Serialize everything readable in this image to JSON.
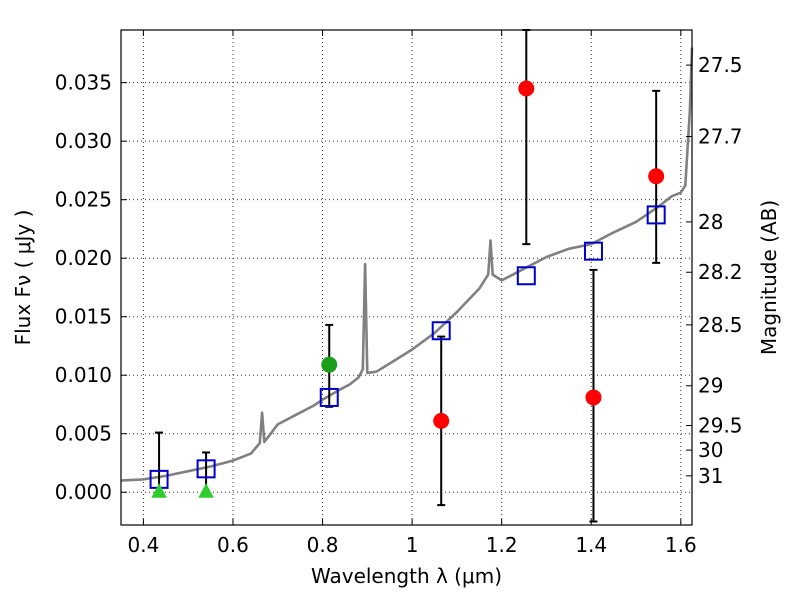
{
  "chart_data": {
    "type": "scatter",
    "title": "",
    "xlabel": "Wavelength  λ (μm)",
    "ylabel": "Flux  Fν  ( μJy )",
    "y2label": "Magnitude (AB)",
    "xlim": [
      0.35,
      1.625
    ],
    "ylim": [
      -0.0028,
      0.0395
    ],
    "grid": true,
    "x_ticks": [
      0.4,
      0.6,
      0.8,
      1.0,
      1.2,
      1.4,
      1.6
    ],
    "x_tick_labels": [
      "0.4",
      "0.6",
      "0.8",
      "1",
      "1.2",
      "1.4",
      "1.6"
    ],
    "y_ticks": [
      0.0,
      0.005,
      0.01,
      0.015,
      0.02,
      0.025,
      0.03,
      0.035
    ],
    "y_tick_labels": [
      "0.000",
      "0.005",
      "0.010",
      "0.015",
      "0.020",
      "0.025",
      "0.030",
      "0.035"
    ],
    "y2_ticks": [
      {
        "label": "27.5",
        "flux": 0.0365
      },
      {
        "label": "27.7",
        "flux": 0.0304
      },
      {
        "label": "28",
        "flux": 0.0231
      },
      {
        "label": "28.2",
        "flux": 0.0188
      },
      {
        "label": "28.5",
        "flux": 0.0143
      },
      {
        "label": "29",
        "flux": 0.0091
      },
      {
        "label": "29.5",
        "flux": 0.0057
      },
      {
        "label": "30",
        "flux": 0.0036
      },
      {
        "label": "31",
        "flux": 0.0014
      }
    ],
    "series": [
      {
        "kind": "line",
        "color": "#808080",
        "x": [
          0.35,
          0.4,
          0.45,
          0.5,
          0.55,
          0.6,
          0.64,
          0.66,
          0.665,
          0.67,
          0.7,
          0.73,
          0.75,
          0.78,
          0.8,
          0.84,
          0.86,
          0.88,
          0.89,
          0.895,
          0.9,
          0.92,
          0.95,
          1.0,
          1.05,
          1.1,
          1.15,
          1.17,
          1.175,
          1.18,
          1.2,
          1.25,
          1.3,
          1.35,
          1.4,
          1.45,
          1.5,
          1.55,
          1.58,
          1.6,
          1.61,
          1.62,
          1.625
        ],
        "y": [
          0.001,
          0.0011,
          0.0014,
          0.0018,
          0.0022,
          0.0027,
          0.0033,
          0.0042,
          0.0068,
          0.0043,
          0.0058,
          0.0064,
          0.0068,
          0.0074,
          0.0079,
          0.0088,
          0.0092,
          0.0098,
          0.0105,
          0.0195,
          0.0102,
          0.0103,
          0.011,
          0.0122,
          0.0136,
          0.0154,
          0.0174,
          0.0186,
          0.0215,
          0.0186,
          0.0181,
          0.0191,
          0.0201,
          0.0208,
          0.0212,
          0.0222,
          0.0231,
          0.0244,
          0.0253,
          0.0256,
          0.0262,
          0.0325,
          0.038
        ]
      },
      {
        "kind": "squares",
        "color": "#0000cc",
        "x": [
          0.435,
          0.54,
          0.815,
          1.065,
          1.255,
          1.405,
          1.545
        ],
        "y": [
          0.0011,
          0.002,
          0.0081,
          0.0138,
          0.0185,
          0.0206,
          0.0237
        ]
      },
      {
        "kind": "circles",
        "color": "#ff0000",
        "x": [
          1.065,
          1.255,
          1.405,
          1.545
        ],
        "y": [
          0.0061,
          0.0345,
          0.0081,
          0.027
        ]
      },
      {
        "kind": "circles",
        "color": "#1a9e1a",
        "x": [
          0.815
        ],
        "y": [
          0.0109
        ]
      },
      {
        "kind": "triangles",
        "color": "#2ecc2e",
        "x": [
          0.435,
          0.54
        ],
        "y": [
          0.0,
          0.0
        ]
      }
    ],
    "error_bars": [
      {
        "x": 0.435,
        "low": 0.0,
        "high": 0.0051
      },
      {
        "x": 0.54,
        "low": 0.0,
        "high": 0.0034
      },
      {
        "x": 0.815,
        "low": 0.0073,
        "high": 0.0143
      },
      {
        "x": 1.065,
        "low": -0.0011,
        "high": 0.0133
      },
      {
        "x": 1.255,
        "low": 0.0212,
        "high": 0.0395
      },
      {
        "x": 1.405,
        "low": -0.0025,
        "high": 0.019
      },
      {
        "x": 1.545,
        "low": 0.0196,
        "high": 0.0343
      }
    ]
  }
}
